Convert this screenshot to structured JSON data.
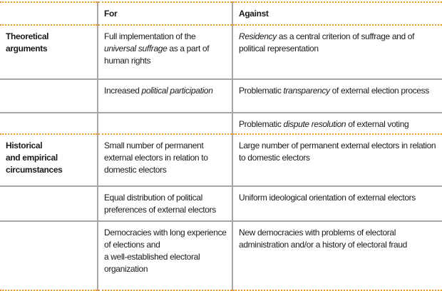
{
  "header": {
    "col1": "",
    "col2": "For",
    "col3": "Against"
  },
  "colors": {
    "accent_rule": "#f39a1e",
    "grid": "#a6a6a6"
  },
  "rows": [
    {
      "label": "Theoretical\narguments",
      "for": [
        {
          "t": "Full implementation of the "
        },
        {
          "t": "universal suffrage",
          "i": true
        },
        {
          "t": " as a part of human rights"
        }
      ],
      "against": [
        {
          "t": "Residency",
          "i": true
        },
        {
          "t": " as a central criterion of suffrage and of political representation"
        }
      ]
    },
    {
      "label": "",
      "for": [
        {
          "t": "Increased "
        },
        {
          "t": "political participation",
          "i": true
        }
      ],
      "against": [
        {
          "t": "Problematic "
        },
        {
          "t": "transparency",
          "i": true
        },
        {
          "t": " of external election process"
        }
      ]
    },
    {
      "label": "",
      "for": [],
      "against": [
        {
          "t": "Problematic "
        },
        {
          "t": "dispute resolution",
          "i": true
        },
        {
          "t": " of external voting"
        }
      ]
    },
    {
      "label": "Historical\nand empirical\ncircumstances",
      "for": [
        {
          "t": "Small number of permanent external electors in relation to domestic electors"
        }
      ],
      "against": [
        {
          "t": "Large number of permanent external electors in relation to domestic electors"
        }
      ]
    },
    {
      "label": "",
      "for": [
        {
          "t": "Equal distribution of political preferences of external electors"
        }
      ],
      "against": [
        {
          "t": "Uniform ideological orientation of external electors"
        }
      ]
    },
    {
      "label": "",
      "for": [
        {
          "t": "Democracies with long experience of elections and\na well-established electoral organization"
        }
      ],
      "against": [
        {
          "t": "New democracies with problems of electoral administration and/or a history of electoral fraud"
        }
      ]
    }
  ]
}
